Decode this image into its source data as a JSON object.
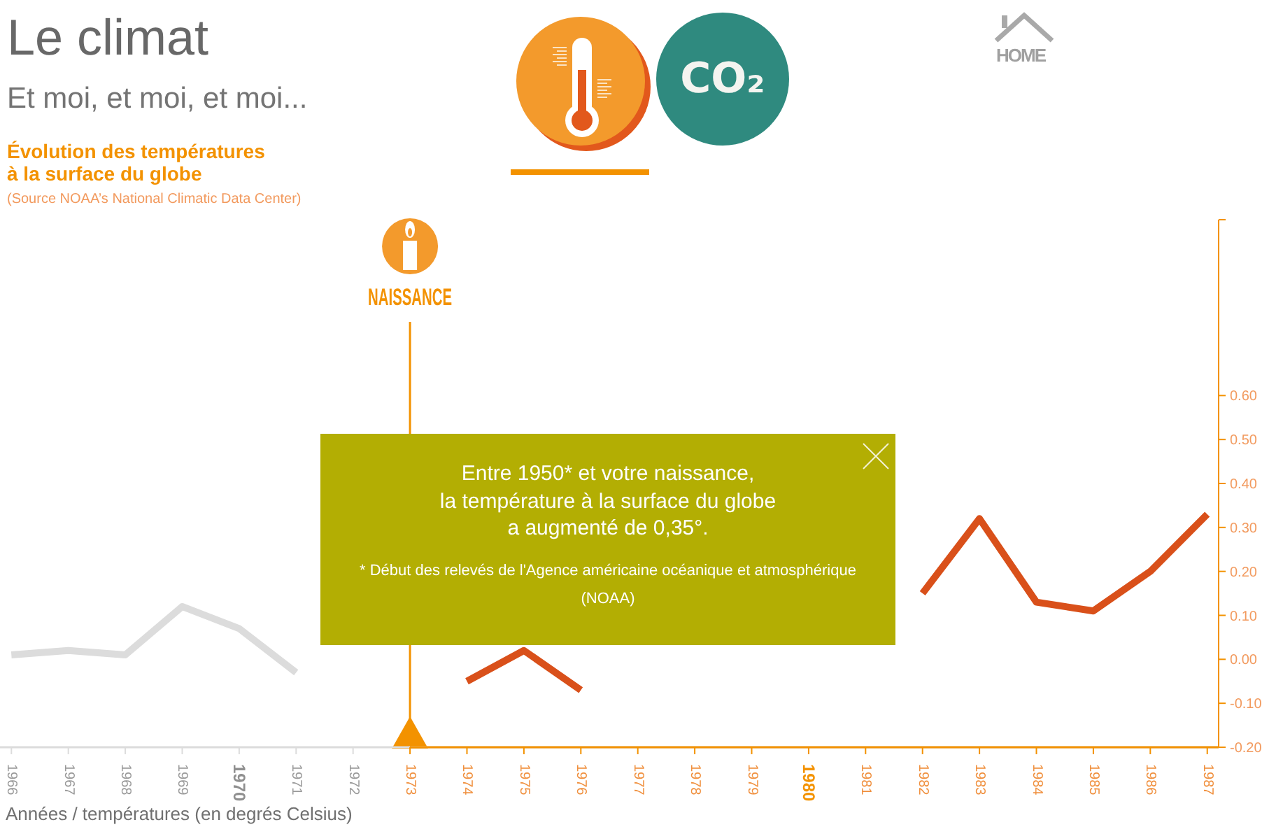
{
  "chart_data": {
    "type": "line",
    "title": "Le climat",
    "subtitle": "Et moi, et moi, et moi...",
    "xlabel": "Années / températures (en degrés Celsius)",
    "annotations": [
      "Évolution des températures\nà la surface du globe",
      "(Source NOAA’s National Climatic Data Center)",
      "Entre 1950* et votre naissance,\nla température à la surface du globe\na augmenté de 0,35°.",
      "* Début des relevés de l'Agence américaine océanique et atmosphérique (NOAA)",
      "HOME",
      "CO₂"
    ],
    "xlim": [
      1965.8,
      1987.2
    ],
    "xticks": [
      1966,
      1967,
      1968,
      1969,
      1970,
      1971,
      1972,
      1973,
      1974,
      1975,
      1976,
      1977,
      1978,
      1979,
      1980,
      1981,
      1982,
      1983,
      1984,
      1985,
      1986,
      1987
    ],
    "ylim": [
      -0.2,
      1
    ],
    "yticks": [
      {
        "value": -0.2,
        "label": "-0.20"
      },
      {
        "value": -0.1,
        "label": "-0.10"
      },
      {
        "value": 0,
        "label": "0.00"
      },
      {
        "value": 0.1,
        "label": "0.10"
      },
      {
        "value": 0.2,
        "label": "0.20"
      },
      {
        "value": 0.3,
        "label": "0.30"
      },
      {
        "value": 0.4,
        "label": "0.40"
      },
      {
        "value": 0.5,
        "label": "0.50"
      },
      {
        "value": 0.6,
        "label": "0.60"
      },
      {
        "value": 1,
        "label": null
      }
    ],
    "series": [
      {
        "color": "#dcdcdc",
        "x": [
          1966,
          1967,
          1968,
          1969,
          1970,
          1971
        ],
        "values": [
          0.01,
          0.02,
          0.01,
          0.12,
          0.07,
          -0.03
        ]
      },
      {
        "color": "#d9501a",
        "x": [
          1974,
          1975,
          1976,
          1977,
          1978,
          1979,
          1980,
          1981,
          1982,
          1983,
          1984,
          1985,
          1986,
          1987
        ],
        "values": [
          -0.05,
          0.02,
          -0.07,
          null,
          null,
          null,
          null,
          null,
          0.15,
          0.32,
          0.13,
          0.11,
          0.2,
          0.33
        ]
      }
    ],
    "ref_lines": [
      {
        "axis": "x",
        "value": 1973,
        "label": "NAISSANCE",
        "color": "#f39200"
      }
    ],
    "marker": "none"
  }
}
